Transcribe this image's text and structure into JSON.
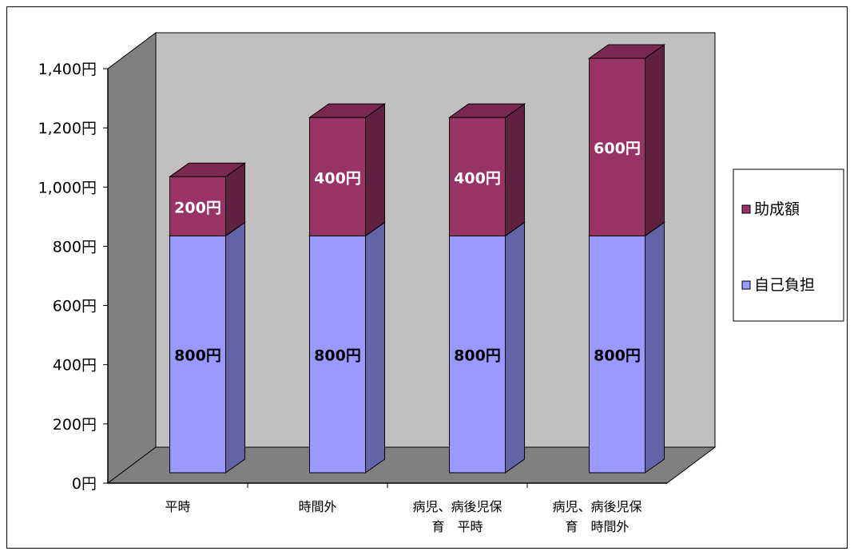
{
  "chart_data": {
    "type": "bar",
    "stacked": true,
    "three_d": true,
    "categories": [
      [
        "平時"
      ],
      [
        "時間外"
      ],
      [
        "病児、病後児保",
        "育　平時"
      ],
      [
        "病児、病後児保",
        "育　時間外"
      ]
    ],
    "series": [
      {
        "name": "自己負担",
        "values": [
          800,
          800,
          800,
          800
        ],
        "labels": [
          "800円",
          "800円",
          "800円",
          "800円"
        ],
        "color": "#9999ff",
        "side_color": "#6363a8",
        "top_color": "#7a7ad0"
      },
      {
        "name": "助成額",
        "values": [
          200,
          400,
          400,
          600
        ],
        "labels": [
          "200円",
          "400円",
          "400円",
          "600円"
        ],
        "color": "#993366",
        "side_color": "#60203f",
        "top_color": "#7a2850"
      }
    ],
    "y_ticks": [
      "0円",
      "200円",
      "400円",
      "600円",
      "800円",
      "1,000円",
      "1,200円",
      "1,400円"
    ],
    "ylim": [
      0,
      1400
    ],
    "legend_position": "right",
    "wall_color": "#c0c0c0",
    "floor_color": "#808080",
    "left_wall_color": "#808080"
  }
}
